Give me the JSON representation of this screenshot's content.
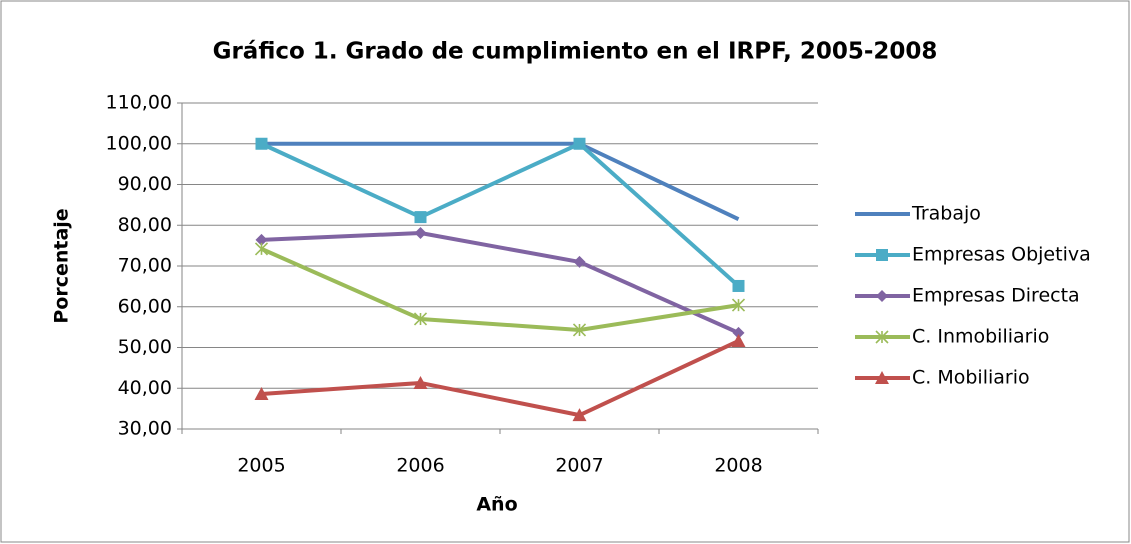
{
  "chart_data": {
    "type": "line",
    "title": "Gráfico 1. Grado de cumplimiento en el IRPF, 2005-2008",
    "x_label": "Año",
    "y_label": "Porcentaje",
    "categories": [
      "2005",
      "2006",
      "2007",
      "2008"
    ],
    "series": [
      {
        "name": "Trabajo",
        "color": "#4f81bd",
        "marker": "none",
        "values": [
          100,
          100,
          100,
          81.5
        ]
      },
      {
        "name": "Empresas Objetiva",
        "color": "#4bacc6",
        "marker": "square",
        "values": [
          100,
          82,
          100,
          65.1
        ]
      },
      {
        "name": "Empresas Directa",
        "color": "#8064a2",
        "marker": "diamond",
        "values": [
          76.4,
          78.1,
          71,
          53.6
        ]
      },
      {
        "name": "C. Inmobiliario",
        "color": "#9bbb59",
        "marker": "star",
        "values": [
          74.2,
          57,
          54.3,
          60.4
        ]
      },
      {
        "name": "C. Mobiliario",
        "color": "#c0504d",
        "marker": "triangle",
        "values": [
          38.6,
          41.3,
          33.4,
          51.6
        ]
      }
    ],
    "ylim": [
      30,
      110
    ],
    "yticks": [
      {
        "value": 30,
        "label": "30,00"
      },
      {
        "value": 40,
        "label": "40,00"
      },
      {
        "value": 50,
        "label": "50,00"
      },
      {
        "value": 60,
        "label": "60,00"
      },
      {
        "value": 70,
        "label": "70,00"
      },
      {
        "value": 80,
        "label": "80,00"
      },
      {
        "value": 90,
        "label": "90,00"
      },
      {
        "value": 100,
        "label": "100,00"
      },
      {
        "value": 110,
        "label": "110,00"
      }
    ],
    "grid": true,
    "legend": "right"
  }
}
